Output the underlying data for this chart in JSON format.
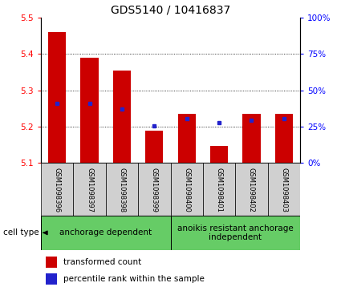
{
  "title": "GDS5140 / 10416837",
  "samples": [
    "GSM1098396",
    "GSM1098397",
    "GSM1098398",
    "GSM1098399",
    "GSM1098400",
    "GSM1098401",
    "GSM1098402",
    "GSM1098403"
  ],
  "bar_tops": [
    5.46,
    5.39,
    5.355,
    5.188,
    5.235,
    5.147,
    5.235,
    5.235
  ],
  "bar_bottom": 5.1,
  "blue_markers": [
    5.263,
    5.263,
    5.248,
    5.202,
    5.222,
    5.21,
    5.218,
    5.222
  ],
  "ylim": [
    5.1,
    5.5
  ],
  "yticks_left": [
    5.1,
    5.2,
    5.3,
    5.4,
    5.5
  ],
  "yticks_right": [
    0,
    25,
    50,
    75,
    100
  ],
  "bar_color": "#cc0000",
  "blue_color": "#2222cc",
  "grid_color": "#000000",
  "bg_color_samples": "#d0d0d0",
  "bg_color_group": "#66cc66",
  "group1_label": "anchorage dependent",
  "group2_label": "anoikis resistant anchorage\nindependent",
  "group1_indices": [
    0,
    1,
    2,
    3
  ],
  "group2_indices": [
    4,
    5,
    6,
    7
  ],
  "cell_type_label": "cell type",
  "legend_bar_label": "transformed count",
  "legend_marker_label": "percentile rank within the sample",
  "title_fontsize": 10,
  "tick_fontsize": 7.5,
  "label_fontsize": 8
}
